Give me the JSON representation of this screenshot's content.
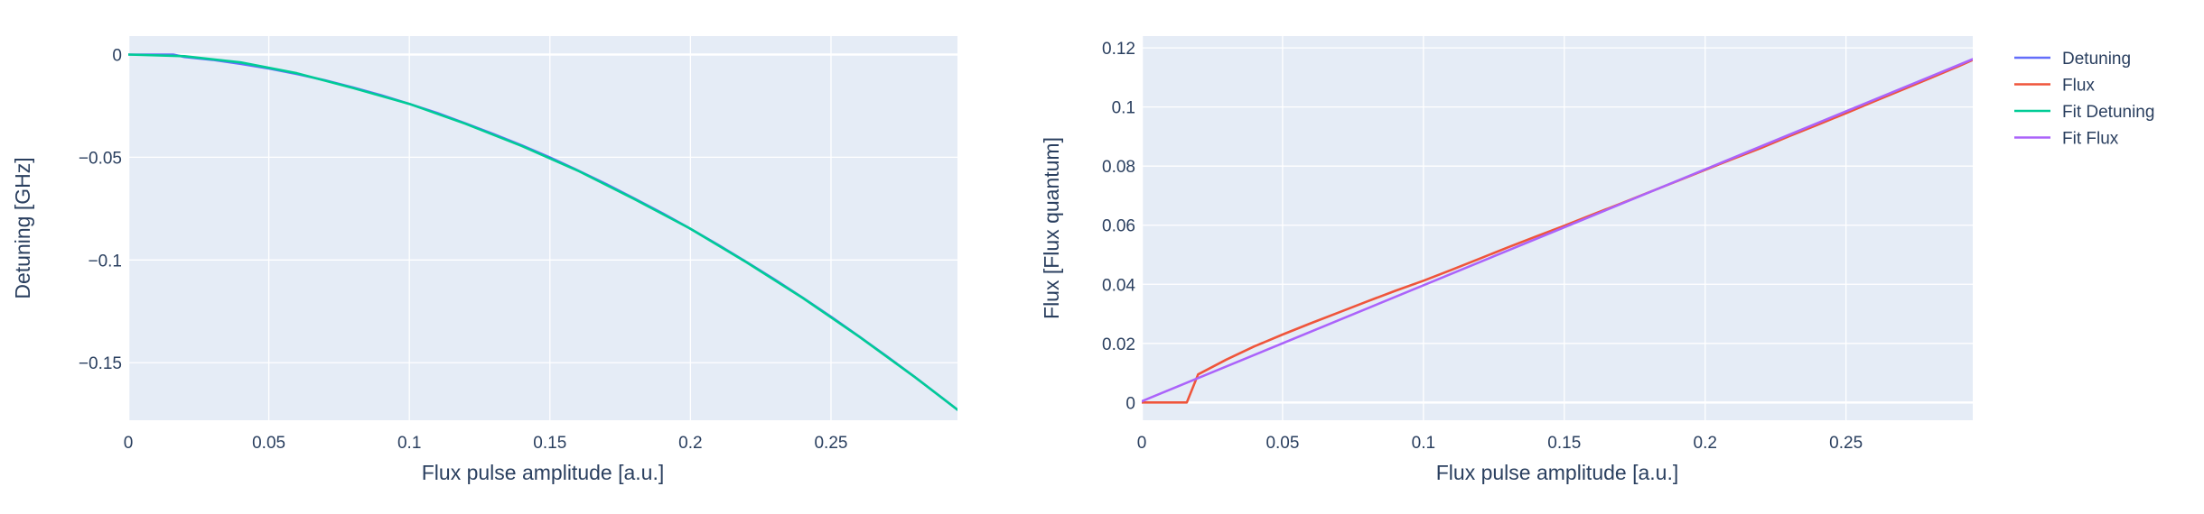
{
  "colors": {
    "plot_bg": "#E5ECF6",
    "grid": "#ffffff",
    "text": "#2a3f5f",
    "detuning": "#636EFA",
    "flux": "#EF553B",
    "fit_detuning": "#00CC96",
    "fit_flux": "#AB63FA"
  },
  "legend": {
    "items": [
      {
        "label": "Detuning",
        "color": "#636EFA"
      },
      {
        "label": "Flux",
        "color": "#EF553B"
      },
      {
        "label": "Fit Detuning",
        "color": "#00CC96"
      },
      {
        "label": "Fit Flux",
        "color": "#AB63FA"
      }
    ]
  },
  "chart_data": [
    {
      "type": "line",
      "xlabel": "Flux pulse amplitude [a.u.]",
      "ylabel": "Detuning [GHz]",
      "xlim": [
        0,
        0.295
      ],
      "ylim": [
        -0.178,
        0.009
      ],
      "xticks": [
        0,
        0.05,
        0.1,
        0.15,
        0.2,
        0.25
      ],
      "xtick_labels": [
        "0",
        "0.05",
        "0.1",
        "0.15",
        "0.2",
        "0.25"
      ],
      "yticks": [
        0,
        -0.05,
        -0.1,
        -0.15
      ],
      "ytick_labels": [
        "0",
        "−0.05",
        "−0.1",
        "−0.15"
      ],
      "grid": true,
      "series": [
        {
          "name": "Detuning",
          "color": "#636EFA",
          "x": [
            0,
            0.016,
            0.02,
            0.03,
            0.04,
            0.05,
            0.06,
            0.07,
            0.08,
            0.09,
            0.1,
            0.11,
            0.12,
            0.13,
            0.14,
            0.15,
            0.16,
            0.17,
            0.18,
            0.19,
            0.2,
            0.21,
            0.22,
            0.23,
            0.24,
            0.25,
            0.26,
            0.27,
            0.28,
            0.29,
            0.295
          ],
          "y": [
            0,
            0,
            -0.0012,
            -0.0026,
            -0.0045,
            -0.0068,
            -0.0095,
            -0.0125,
            -0.016,
            -0.0198,
            -0.024,
            -0.0285,
            -0.0335,
            -0.0387,
            -0.0442,
            -0.0501,
            -0.0564,
            -0.063,
            -0.07,
            -0.0772,
            -0.0848,
            -0.0927,
            -0.101,
            -0.1095,
            -0.1184,
            -0.1276,
            -0.1372,
            -0.147,
            -0.1571,
            -0.1676,
            -0.1729
          ]
        },
        {
          "name": "Fit Detuning",
          "color": "#00CC96",
          "x": [
            0,
            0.02,
            0.04,
            0.06,
            0.08,
            0.1,
            0.12,
            0.14,
            0.16,
            0.18,
            0.2,
            0.22,
            0.24,
            0.26,
            0.28,
            0.295
          ],
          "y": [
            0,
            -0.0008,
            -0.0038,
            -0.0091,
            -0.0163,
            -0.024,
            -0.0337,
            -0.0445,
            -0.0566,
            -0.0703,
            -0.0848,
            -0.1012,
            -0.1185,
            -0.1373,
            -0.1572,
            -0.1729
          ]
        }
      ]
    },
    {
      "type": "line",
      "xlabel": "Flux pulse amplitude [a.u.]",
      "ylabel": "Flux [Flux quantum]",
      "xlim": [
        0,
        0.295
      ],
      "ylim": [
        -0.006,
        0.124
      ],
      "xticks": [
        0,
        0.05,
        0.1,
        0.15,
        0.2,
        0.25
      ],
      "xtick_labels": [
        "0",
        "0.05",
        "0.1",
        "0.15",
        "0.2",
        "0.25"
      ],
      "yticks": [
        0,
        0.02,
        0.04,
        0.06,
        0.08,
        0.1,
        0.12
      ],
      "ytick_labels": [
        "0",
        "0.02",
        "0.04",
        "0.06",
        "0.08",
        "0.1",
        "0.12"
      ],
      "grid": true,
      "series": [
        {
          "name": "Flux",
          "color": "#EF553B",
          "x": [
            0,
            0.016,
            0.02,
            0.03,
            0.04,
            0.05,
            0.06,
            0.07,
            0.08,
            0.09,
            0.1,
            0.11,
            0.12,
            0.13,
            0.14,
            0.15,
            0.16,
            0.17,
            0.18,
            0.19,
            0.2,
            0.21,
            0.22,
            0.23,
            0.24,
            0.25,
            0.26,
            0.27,
            0.28,
            0.29,
            0.295
          ],
          "y": [
            0,
            0,
            0.0095,
            0.0145,
            0.019,
            0.023,
            0.0268,
            0.0305,
            0.0342,
            0.0378,
            0.0412,
            0.0449,
            0.0487,
            0.0525,
            0.0562,
            0.0598,
            0.0636,
            0.0673,
            0.0711,
            0.0749,
            0.0787,
            0.0825,
            0.0862,
            0.0902,
            0.094,
            0.0979,
            0.1019,
            0.1058,
            0.1098,
            0.1138,
            0.1159
          ]
        },
        {
          "name": "Fit Flux",
          "color": "#AB63FA",
          "x": [
            0,
            0.295
          ],
          "y": [
            0.0004,
            0.1162
          ]
        }
      ]
    }
  ]
}
